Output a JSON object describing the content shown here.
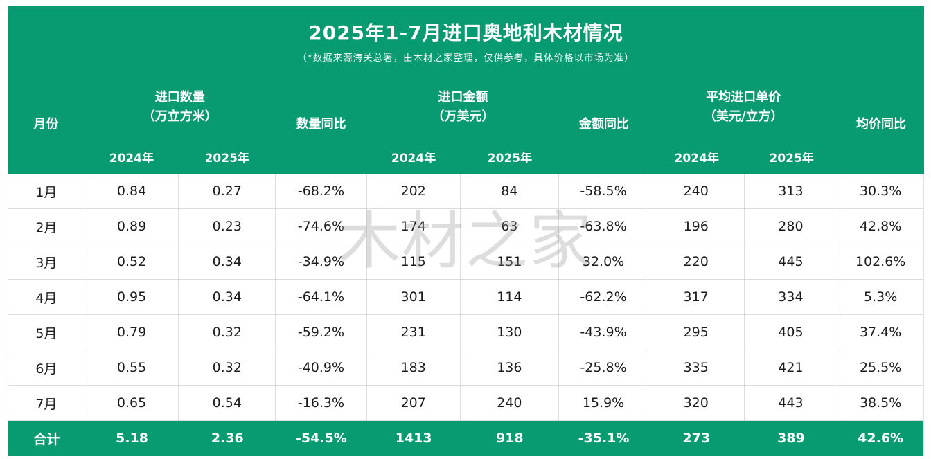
{
  "page": {
    "title": "2025年1-7月进口奥地利木材情况",
    "subtitle": "（*数据来源海关总署，由木材之家整理，仅供参考，具体价格以市场为准）",
    "watermark": "木材之家"
  },
  "colors": {
    "header_green": "#089b71",
    "negative_text_green": "#2fa883",
    "positive_text_red": "#dc3832",
    "border_gray": "#dcdcdc"
  },
  "table": {
    "columns": {
      "month": "月份",
      "qty_group": "进口数量",
      "qty_unit": "（万立方米）",
      "qty_yoy": "数量同比",
      "amount_group": "进口金额",
      "amount_unit": "（万美元）",
      "amount_yoy": "金额同比",
      "price_group": "平均进口单价",
      "price_unit": "（美元/立方）",
      "price_yoy": "均价同比",
      "year_2024": "2024年",
      "year_2025": "2025年"
    },
    "rows": [
      {
        "month": "1月",
        "qty_2024": "0.84",
        "qty_2025": "0.27",
        "qty_yoy": "-68.2%",
        "amt_2024": "202",
        "amt_2025": "84",
        "amt_yoy": "-58.5%",
        "price_2024": "240",
        "price_2025": "313",
        "price_yoy": "30.3%"
      },
      {
        "month": "2月",
        "qty_2024": "0.89",
        "qty_2025": "0.23",
        "qty_yoy": "-74.6%",
        "amt_2024": "174",
        "amt_2025": "63",
        "amt_yoy": "-63.8%",
        "price_2024": "196",
        "price_2025": "280",
        "price_yoy": "42.8%"
      },
      {
        "month": "3月",
        "qty_2024": "0.52",
        "qty_2025": "0.34",
        "qty_yoy": "-34.9%",
        "amt_2024": "115",
        "amt_2025": "151",
        "amt_yoy": "32.0%",
        "price_2024": "220",
        "price_2025": "445",
        "price_yoy": "102.6%"
      },
      {
        "month": "4月",
        "qty_2024": "0.95",
        "qty_2025": "0.34",
        "qty_yoy": "-64.1%",
        "amt_2024": "301",
        "amt_2025": "114",
        "amt_yoy": "-62.2%",
        "price_2024": "317",
        "price_2025": "334",
        "price_yoy": "5.3%"
      },
      {
        "month": "5月",
        "qty_2024": "0.79",
        "qty_2025": "0.32",
        "qty_yoy": "-59.2%",
        "amt_2024": "231",
        "amt_2025": "130",
        "amt_yoy": "-43.9%",
        "price_2024": "295",
        "price_2025": "405",
        "price_yoy": "37.4%"
      },
      {
        "month": "6月",
        "qty_2024": "0.55",
        "qty_2025": "0.32",
        "qty_yoy": "-40.9%",
        "amt_2024": "183",
        "amt_2025": "136",
        "amt_yoy": "-25.8%",
        "price_2024": "335",
        "price_2025": "421",
        "price_yoy": "25.5%"
      },
      {
        "month": "7月",
        "qty_2024": "0.65",
        "qty_2025": "0.54",
        "qty_yoy": "-16.3%",
        "amt_2024": "207",
        "amt_2025": "240",
        "amt_yoy": "15.9%",
        "price_2024": "320",
        "price_2025": "443",
        "price_yoy": "38.5%"
      }
    ],
    "total": {
      "month": "合计",
      "qty_2024": "5.18",
      "qty_2025": "2.36",
      "qty_yoy": "-54.5%",
      "amt_2024": "1413",
      "amt_2025": "918",
      "amt_yoy": "-35.1%",
      "price_2024": "273",
      "price_2025": "389",
      "price_yoy": "42.6%"
    }
  }
}
